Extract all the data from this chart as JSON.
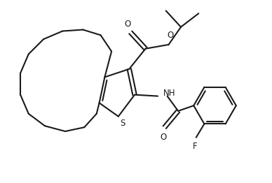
{
  "bg_color": "#ffffff",
  "line_color": "#1a1a1a",
  "line_width": 1.5,
  "fig_width": 3.88,
  "fig_height": 2.62,
  "dpi": 100,
  "xlim": [
    0,
    10
  ],
  "ylim": [
    0,
    6.74
  ],
  "S_label": "S",
  "O_labels": [
    "O",
    "O",
    "O"
  ],
  "NH_label": "NH",
  "F_label": "F"
}
